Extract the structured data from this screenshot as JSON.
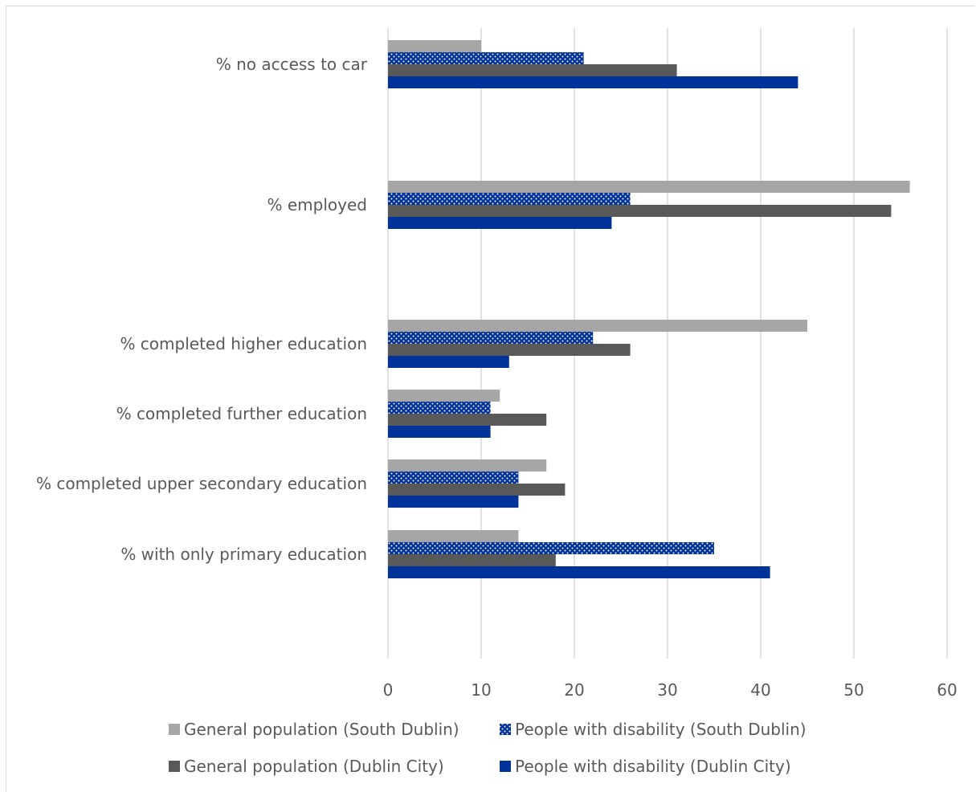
{
  "chart_data": {
    "type": "bar",
    "orientation": "horizontal",
    "categories": [
      "% no access to car",
      "% employed",
      "% completed higher education",
      "% completed further education",
      "% completed upper secondary education",
      "% with only primary education"
    ],
    "series": [
      {
        "name": "General population (South Dublin)",
        "color": "#a6a6a6",
        "pattern": "solid",
        "values": [
          10,
          56,
          45,
          12,
          17,
          14
        ]
      },
      {
        "name": "People with disability (South Dublin)",
        "color": "#003399",
        "pattern": "dots",
        "values": [
          21,
          26,
          22,
          11,
          14,
          35
        ]
      },
      {
        "name": "General population (Dublin City)",
        "color": "#595959",
        "pattern": "solid",
        "values": [
          31,
          54,
          26,
          17,
          19,
          18
        ]
      },
      {
        "name": "People with disability (Dublin City)",
        "color": "#003399",
        "pattern": "solid",
        "values": [
          44,
          24,
          13,
          11,
          14,
          41
        ]
      }
    ],
    "xlim": [
      0,
      60
    ],
    "xticks": [
      "0",
      "10",
      "20",
      "30",
      "40",
      "50",
      "60"
    ],
    "grid": true,
    "legend_position": "bottom"
  }
}
